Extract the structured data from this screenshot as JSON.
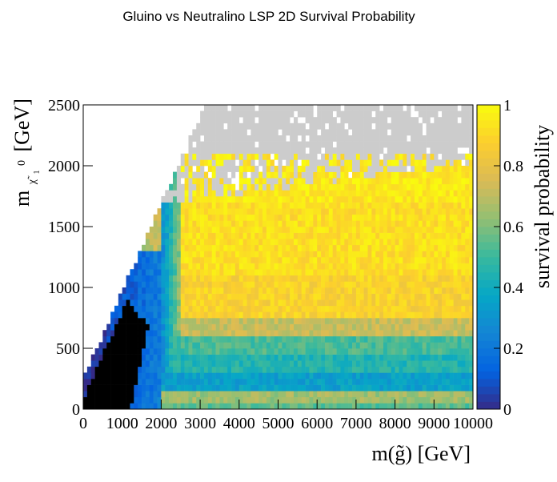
{
  "chart_data": {
    "type": "heatmap",
    "title": "Gluino vs Neutralino LSP 2D Survival Probability",
    "xlabel": "m(g̃) [GeV]",
    "ylabel_main": "m",
    "ylabel_sub": "χ̃",
    "ylabel_sub_index": "1",
    "ylabel_sup": "0",
    "ylabel_unit": "[GeV]",
    "colorbar_label": "survival probability",
    "xlim": [
      0,
      10000
    ],
    "ylim": [
      0,
      2500
    ],
    "zlim": [
      0,
      1
    ],
    "x_ticks": [
      "0",
      "1000",
      "2000",
      "3000",
      "4000",
      "5000",
      "6000",
      "7000",
      "8000",
      "9000",
      "10000"
    ],
    "y_ticks": [
      "0",
      "500",
      "1000",
      "1500",
      "2000",
      "2500"
    ],
    "z_ticks": [
      "0",
      "0.2",
      "0.4",
      "0.6",
      "0.8",
      "1"
    ],
    "bins_x": 100,
    "bins_y": 50,
    "grey_means": "no valid points",
    "black_means": "kinematically forbidden / zero",
    "profile_by_y_range": [
      {
        "y": [
          0,
          50
        ],
        "value": 0.55
      },
      {
        "y": [
          50,
          150
        ],
        "value": 0.65
      },
      {
        "y": [
          150,
          300
        ],
        "value": 0.35
      },
      {
        "y": [
          300,
          450
        ],
        "value": 0.45
      },
      {
        "y": [
          450,
          600
        ],
        "value": 0.52
      },
      {
        "y": [
          600,
          750
        ],
        "value": 0.72
      },
      {
        "y": [
          750,
          1100
        ],
        "value": 0.88
      },
      {
        "y": [
          1100,
          1700
        ],
        "value": 0.92
      },
      {
        "y": [
          1700,
          2100
        ],
        "value": 0.95
      }
    ],
    "colormap": [
      "#352a87",
      "#0363e1",
      "#1485d4",
      "#06a7c6",
      "#38b99e",
      "#92bf73",
      "#d9ba56",
      "#fcce2e",
      "#f9fb0e"
    ]
  }
}
